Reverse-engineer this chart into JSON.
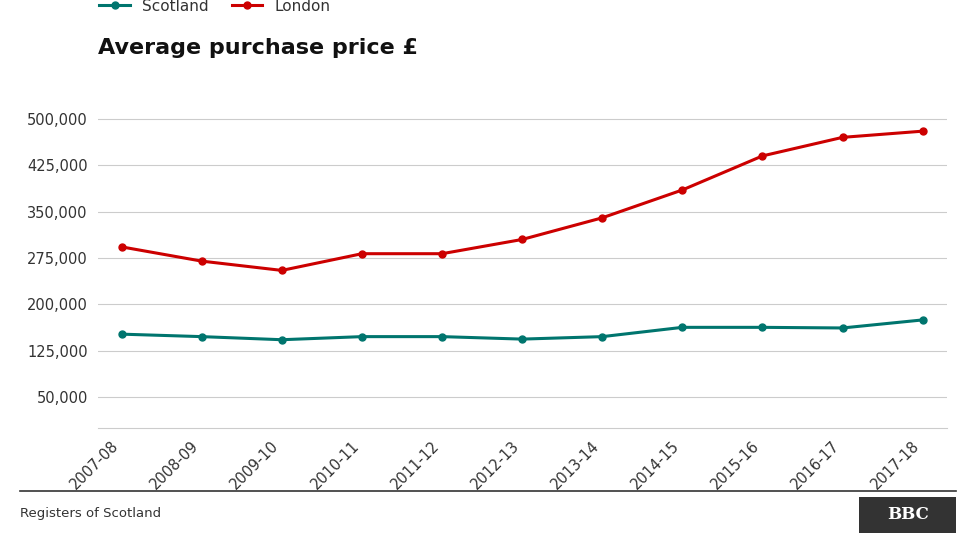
{
  "title": "Average purchase price £",
  "years": [
    "2007-08",
    "2008-09",
    "2009-10",
    "2010-11",
    "2011-12",
    "2012-13",
    "2013-14",
    "2014-15",
    "2015-16",
    "2016-17",
    "2017-18"
  ],
  "scotland": [
    152000,
    148000,
    143000,
    148000,
    148000,
    144000,
    148000,
    163000,
    163000,
    162000,
    175000
  ],
  "london": [
    293000,
    270000,
    255000,
    282000,
    282000,
    305000,
    340000,
    385000,
    440000,
    470000,
    480000
  ],
  "scotland_color": "#00756e",
  "london_color": "#cc0000",
  "background_color": "#ffffff",
  "footer_text": "Registers of Scotland",
  "bbc_text": "BBC",
  "ylim": [
    0,
    550000
  ],
  "yticks": [
    50000,
    125000,
    200000,
    275000,
    350000,
    425000,
    500000
  ],
  "ytick_labels": [
    "50,000",
    "125,000",
    "200,000",
    "275,000",
    "350,000",
    "425,000",
    "500,000"
  ],
  "legend_scotland": "Scotland",
  "legend_london": "London"
}
